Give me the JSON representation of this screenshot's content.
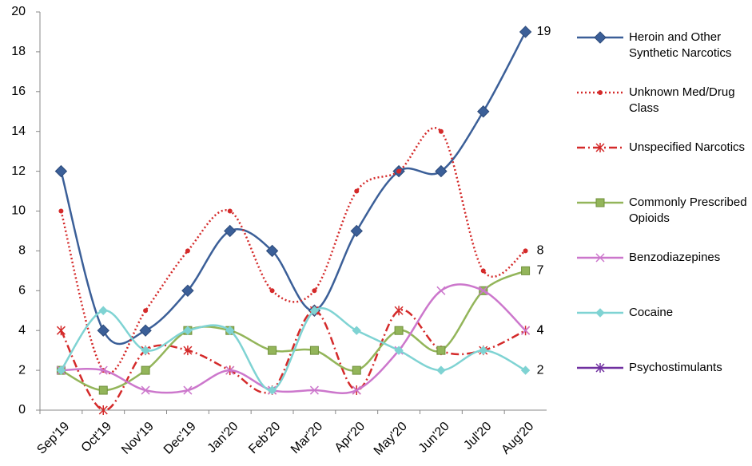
{
  "chart_data": {
    "type": "line",
    "categories": [
      "Sep'19",
      "Oct'19",
      "Nov'19",
      "Dec'19",
      "Jan'20",
      "Feb'20",
      "Mar'20",
      "Apr'20",
      "May'20",
      "Jun'20",
      "Jul'20",
      "Aug'20"
    ],
    "ylim": [
      0,
      20
    ],
    "yticks": [
      0,
      2,
      4,
      6,
      8,
      10,
      12,
      14,
      16,
      18,
      20
    ],
    "grid": false,
    "smooth": true,
    "end_labels": true,
    "legend": "right",
    "series": [
      {
        "name": "Heroin and Other Synthetic Narcotics",
        "color": "#3b5f98",
        "marker": "diamond",
        "dash": "solid",
        "values": [
          12,
          4,
          4,
          6,
          9,
          8,
          5,
          9,
          12,
          12,
          15,
          19
        ]
      },
      {
        "name": "Unknown Med/Drug Class",
        "color": "#d42a2a",
        "marker": "circle",
        "dash": "dotted",
        "values": [
          10,
          2,
          5,
          8,
          10,
          6,
          6,
          11,
          12,
          14,
          7,
          8
        ]
      },
      {
        "name": "Unspecified Narcotics",
        "color": "#d42a2a",
        "marker": "star",
        "dash": "dashdot",
        "values": [
          4,
          0,
          3,
          3,
          2,
          1,
          5,
          1,
          5,
          3,
          3,
          4
        ]
      },
      {
        "name": "Commonly Prescribed Opioids",
        "color": "#93b55a",
        "marker": "square",
        "dash": "solid",
        "values": [
          2,
          1,
          2,
          4,
          4,
          3,
          3,
          2,
          4,
          3,
          6,
          7
        ]
      },
      {
        "name": "Benzodiazepines",
        "color": "#cc77cc",
        "marker": "x",
        "dash": "solid",
        "values": [
          2,
          2,
          1,
          1,
          2,
          1,
          1,
          1,
          3,
          6,
          6,
          4
        ]
      },
      {
        "name": "Cocaine",
        "color": "#7fd3d3",
        "marker": "smalldiamond",
        "dash": "solid",
        "values": [
          2,
          5,
          3,
          4,
          4,
          1,
          5,
          4,
          3,
          2,
          3,
          2
        ]
      },
      {
        "name": "Psychostimulants",
        "color": "#7030a0",
        "marker": "star",
        "dash": "solid",
        "values": [
          null,
          null,
          null,
          null,
          null,
          null,
          null,
          null,
          null,
          null,
          null,
          null
        ]
      }
    ]
  }
}
